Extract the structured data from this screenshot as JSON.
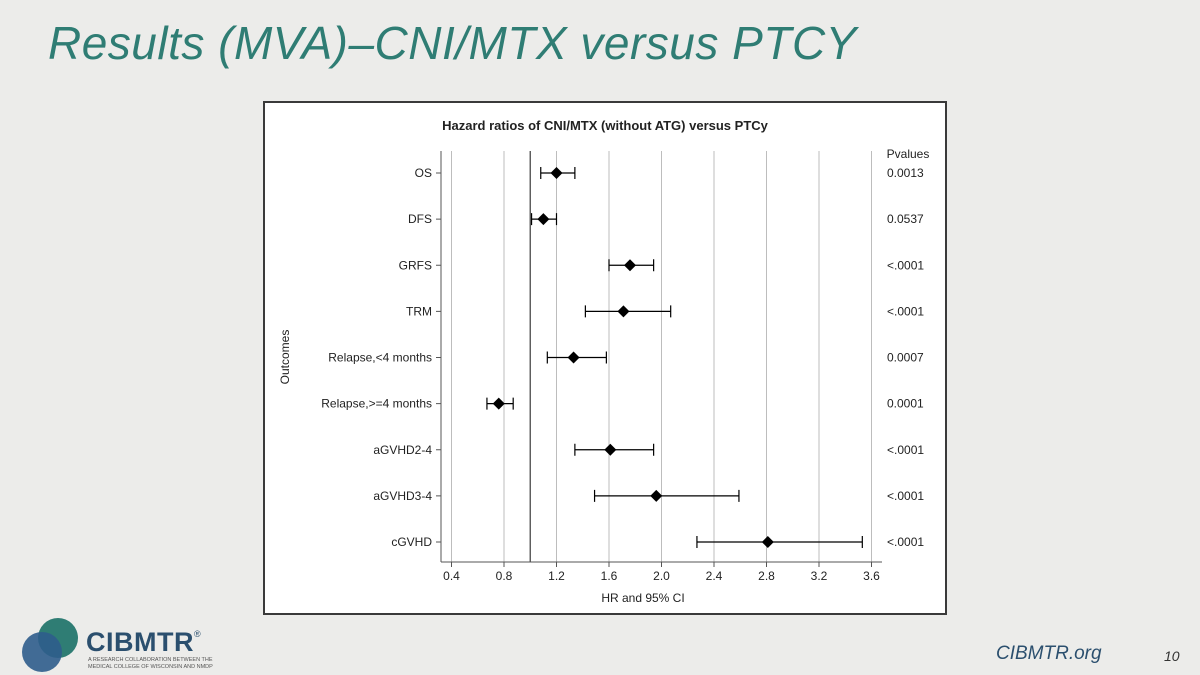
{
  "slide": {
    "title": "Results (MVA)–CNI/MTX versus PTCY",
    "footer_site": "CIBMTR.org",
    "page_number": "10"
  },
  "logo": {
    "name": "CIBMTR",
    "trademark": "®",
    "tagline": "A research collaboration between the Medical College of Wisconsin and NMDP",
    "colors": {
      "teal": "#2f7d74",
      "blue": "#2f5d8c",
      "navy": "#2b4f6e"
    }
  },
  "chart_data": {
    "type": "forest",
    "title": "Hazard ratios of CNI/MTX (without ATG) versus PTCy",
    "xlabel": "HR and 95% CI",
    "ylabel": "Outcomes",
    "pvalue_header": "Pvalues",
    "xlim": [
      0.32,
      3.68
    ],
    "xticks": [
      0.4,
      0.8,
      1.2,
      1.6,
      2.0,
      2.4,
      2.8,
      3.2,
      3.6
    ],
    "xtick_labels": [
      "0.4",
      "0.8",
      "1.2",
      "1.6",
      "2.0",
      "2.4",
      "2.8",
      "3.2",
      "3.6"
    ],
    "reference_line": 1.0,
    "grid": true,
    "rows": [
      {
        "label": "OS",
        "hr": 1.2,
        "lo": 1.08,
        "hi": 1.34,
        "p": "0.0013"
      },
      {
        "label": "DFS",
        "hr": 1.1,
        "lo": 1.01,
        "hi": 1.2,
        "p": "0.0537"
      },
      {
        "label": "GRFS",
        "hr": 1.76,
        "lo": 1.6,
        "hi": 1.94,
        "p": "<.0001"
      },
      {
        "label": "TRM",
        "hr": 1.71,
        "lo": 1.42,
        "hi": 2.07,
        "p": "<.0001"
      },
      {
        "label": "Relapse,<4 months",
        "hr": 1.33,
        "lo": 1.13,
        "hi": 1.58,
        "p": "0.0007"
      },
      {
        "label": "Relapse,>=4 months",
        "hr": 0.76,
        "lo": 0.67,
        "hi": 0.87,
        "p": "0.0001"
      },
      {
        "label": "aGVHD2-4",
        "hr": 1.61,
        "lo": 1.34,
        "hi": 1.94,
        "p": "<.0001"
      },
      {
        "label": "aGVHD3-4",
        "hr": 1.96,
        "lo": 1.49,
        "hi": 2.59,
        "p": "<.0001"
      },
      {
        "label": "cGVHD",
        "hr": 2.81,
        "lo": 2.27,
        "hi": 3.53,
        "p": "<.0001"
      }
    ],
    "colors": {
      "marker": "#000000",
      "grid": "#bdbdbd",
      "reference": "#555555",
      "axis": "#555555",
      "text": "#222222"
    }
  }
}
